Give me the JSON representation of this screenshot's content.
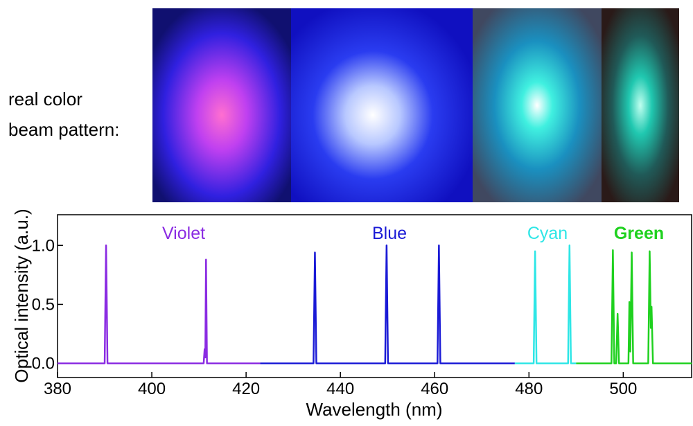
{
  "chart_data": {
    "type": "line",
    "annotations": [
      "real color",
      "beam pattern:"
    ],
    "xlabel": "Wavelength (nm)",
    "ylabel": "Optical intensity (a.u.)",
    "xlim": [
      380,
      514.5
    ],
    "ylim": [
      -0.12,
      1.26
    ],
    "xticks": [
      380,
      400,
      420,
      440,
      460,
      480,
      500
    ],
    "yticks": [
      {
        "value": 0,
        "label": "0.0"
      },
      {
        "value": 0.5,
        "label": "0.5"
      },
      {
        "value": 1,
        "label": "1.0"
      }
    ],
    "series": [
      {
        "name": "Violet",
        "color": "#8a2be2",
        "x": [
          380,
          390.0,
          390.3,
          390.6,
          411.0,
          411.2,
          411.35,
          411.5,
          411.7,
          423
        ],
        "values": [
          0,
          0,
          1.0,
          0,
          0,
          0.12,
          0.05,
          0.88,
          0,
          0
        ]
      },
      {
        "name": "Blue",
        "color": "#1a1ad6",
        "x": [
          423,
          434.3,
          434.6,
          434.9,
          449.5,
          449.8,
          450.1,
          460.6,
          460.9,
          461.2,
          477
        ],
        "values": [
          0,
          0,
          0.94,
          0,
          0,
          1.0,
          0,
          0,
          1.0,
          0,
          0
        ]
      },
      {
        "name": "Cyan",
        "color": "#2ee6e6",
        "x": [
          477,
          481.0,
          481.3,
          481.6,
          488.3,
          488.6,
          488.9,
          490
        ],
        "values": [
          0,
          0,
          0.95,
          0,
          0,
          1.0,
          0,
          0
        ]
      },
      {
        "name": "Green",
        "color": "#1fd11f",
        "x": [
          490,
          497.5,
          497.8,
          498.1,
          498.5,
          498.8,
          499.1,
          501.1,
          501.3,
          501.5,
          501.8,
          502.1,
          505.3,
          505.6,
          505.85,
          506.0,
          506.3,
          514.5
        ],
        "values": [
          0,
          0,
          0.96,
          0,
          0,
          0.42,
          0,
          0,
          0.52,
          0.1,
          0.94,
          0,
          0,
          0.95,
          0.3,
          0.48,
          0,
          0
        ]
      }
    ]
  }
}
